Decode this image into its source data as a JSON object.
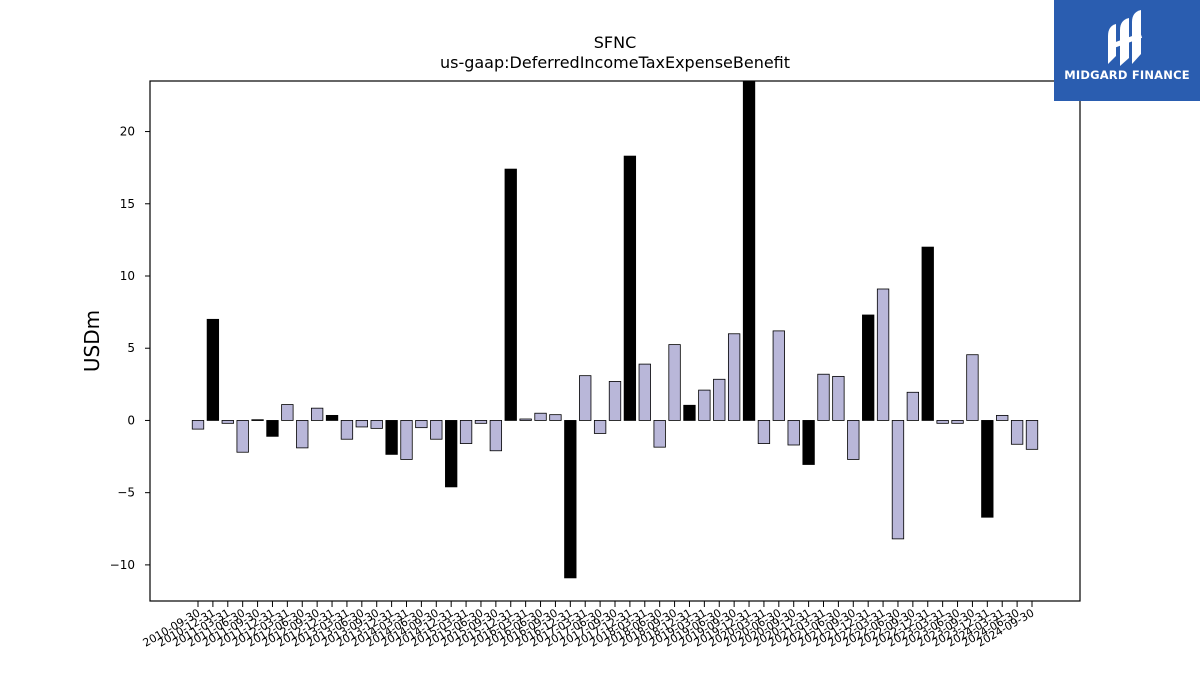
{
  "chart_data": {
    "type": "bar",
    "title": "SFNC",
    "subtitle": "us-gaap:DeferredIncomeTaxExpenseBenefit",
    "ylabel": "USDm",
    "xlabel": "",
    "ylim": [
      -12.5,
      23.5
    ],
    "yticks": [
      -10,
      -5,
      0,
      5,
      10,
      15,
      20
    ],
    "ytick_labels": [
      "−10",
      "−5",
      "0",
      "5",
      "10",
      "15",
      "20"
    ],
    "grid": false,
    "bar_colors": {
      "quarterly": "#b9b7d9",
      "annual": "#000000"
    },
    "categories": [
      "2010-09-30",
      "2010-12-31",
      "2011-03-31",
      "2011-06-30",
      "2011-09-30",
      "2011-12-31",
      "2012-03-31",
      "2012-06-30",
      "2012-09-30",
      "2012-12-31",
      "2013-03-31",
      "2013-06-30",
      "2013-09-30",
      "2013-12-31",
      "2014-03-31",
      "2014-06-30",
      "2014-09-30",
      "2014-12-31",
      "2015-03-31",
      "2015-06-30",
      "2015-09-30",
      "2015-12-31",
      "2016-03-31",
      "2016-06-30",
      "2016-09-30",
      "2016-12-31",
      "2017-03-31",
      "2017-06-30",
      "2017-09-30",
      "2017-12-31",
      "2018-03-31",
      "2018-06-30",
      "2018-09-30",
      "2018-12-31",
      "2019-03-31",
      "2019-06-30",
      "2019-09-30",
      "2019-12-31",
      "2020-03-31",
      "2020-06-30",
      "2020-09-30",
      "2020-12-31",
      "2021-03-31",
      "2021-06-30",
      "2021-09-30",
      "2021-12-31",
      "2022-03-31",
      "2022-06-30",
      "2022-09-30",
      "2022-12-31",
      "2023-03-31",
      "2023-06-30",
      "2023-09-30",
      "2023-12-31",
      "2024-03-31",
      "2024-06-30",
      "2024-09-30"
    ],
    "values": [
      -0.6,
      7.0,
      -0.2,
      -2.2,
      0.05,
      -1.1,
      1.1,
      -1.9,
      0.85,
      0.35,
      -1.3,
      -0.45,
      -0.55,
      -2.35,
      -2.7,
      -0.5,
      -1.3,
      -4.6,
      -1.6,
      -0.2,
      -2.1,
      17.4,
      0.1,
      0.5,
      0.4,
      -10.9,
      3.1,
      -0.9,
      2.7,
      18.3,
      3.9,
      -1.85,
      5.25,
      1.05,
      2.1,
      2.85,
      6.0,
      23.5,
      -1.6,
      6.2,
      -1.7,
      -3.05,
      3.2,
      3.05,
      -2.7,
      7.3,
      9.1,
      -8.2,
      1.95,
      12.0,
      -0.2,
      -0.2,
      4.55,
      -6.7,
      0.35,
      -1.65,
      -2.0
    ],
    "annual": [
      false,
      true,
      false,
      false,
      false,
      true,
      false,
      false,
      false,
      true,
      false,
      false,
      false,
      true,
      false,
      false,
      false,
      true,
      false,
      false,
      false,
      true,
      false,
      false,
      false,
      true,
      false,
      false,
      false,
      true,
      false,
      false,
      false,
      true,
      false,
      false,
      false,
      true,
      false,
      false,
      false,
      true,
      false,
      false,
      false,
      true,
      false,
      false,
      false,
      true,
      false,
      false,
      false,
      true,
      false,
      false,
      false
    ]
  },
  "logo": {
    "text": "MIDGARD FINANCE",
    "color": "#2a5db0"
  }
}
